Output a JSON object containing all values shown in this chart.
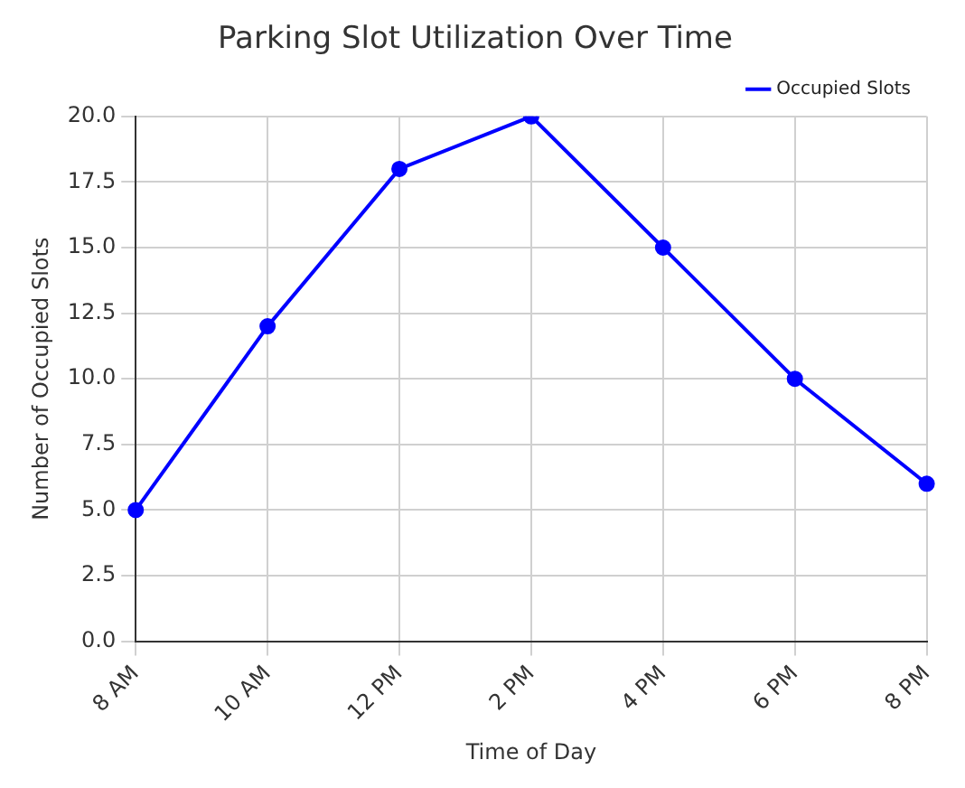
{
  "chart_data": {
    "type": "line",
    "title": "Parking Slot Utilization Over Time",
    "xlabel": "Time of Day",
    "ylabel": "Number of Occupied Slots",
    "categories": [
      "8 AM",
      "10 AM",
      "12 PM",
      "2 PM",
      "4 PM",
      "6 PM",
      "8 PM"
    ],
    "series": [
      {
        "name": "Occupied Slots",
        "color": "#0000ff",
        "values": [
          5,
          12,
          18,
          20,
          15,
          10,
          6
        ]
      }
    ],
    "ylim": [
      0,
      20
    ],
    "yticks": [
      {
        "value": 0,
        "label": "0.0"
      },
      {
        "value": 2.5,
        "label": "2.5"
      },
      {
        "value": 5,
        "label": "5.0"
      },
      {
        "value": 7.5,
        "label": "7.5"
      },
      {
        "value": 10,
        "label": "10.0"
      },
      {
        "value": 12.5,
        "label": "12.5"
      },
      {
        "value": 15,
        "label": "15.0"
      },
      {
        "value": 17.5,
        "label": "17.5"
      },
      {
        "value": 20,
        "label": "20.0"
      }
    ],
    "grid": true,
    "legend": "top right",
    "marker": "circle",
    "line_style": "solid"
  }
}
